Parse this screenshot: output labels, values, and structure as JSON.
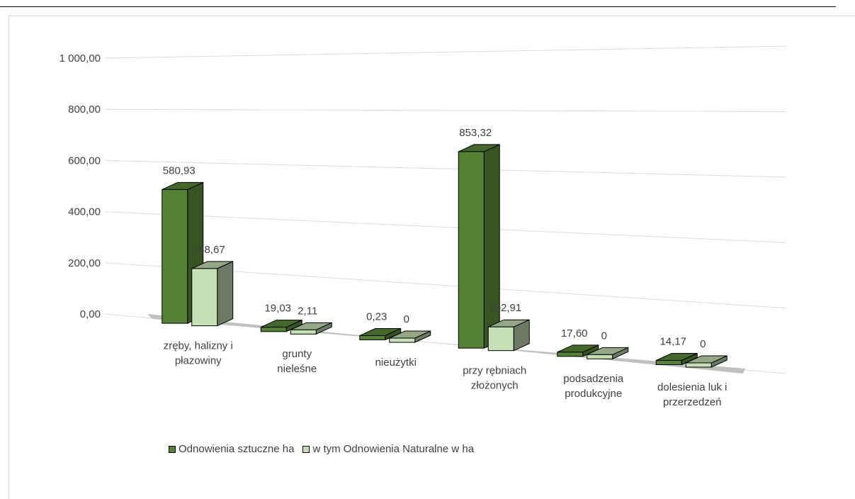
{
  "chart_data": {
    "type": "bar",
    "style": "3d-clustered-column",
    "categories": [
      [
        "zręby, halizny i",
        "płazowiny"
      ],
      [
        "grunty",
        "nieleśne"
      ],
      [
        "nieużytki"
      ],
      [
        "przy rębniach",
        "złożonych"
      ],
      [
        "podsadzenia",
        "produkcyjne"
      ],
      [
        "dolesienia luk i",
        "przerzedzeń"
      ]
    ],
    "series": [
      {
        "name": "Odnowienia sztuczne ha",
        "color": "#548235",
        "values": [
          580.93,
          19.03,
          0.23,
          853.32,
          17.6,
          14.17
        ],
        "labels": [
          "580,93",
          "19,03",
          "0,23",
          "853,32",
          "17,60",
          "14,17"
        ]
      },
      {
        "name": "w tym Odnowienia Naturalne w ha",
        "color": "#c5e0b4",
        "values": [
          248.67,
          2.11,
          0,
          102.91,
          0,
          0
        ],
        "labels": [
          "248,67",
          "2,11",
          "0",
          "102,91",
          "0",
          "0"
        ]
      }
    ],
    "yticks": [
      "0,00",
      "200,00",
      "400,00",
      "600,00",
      "800,00",
      "1 000,00"
    ],
    "ylim": [
      0,
      1000
    ],
    "grid": true,
    "legend": "bottom-left"
  }
}
